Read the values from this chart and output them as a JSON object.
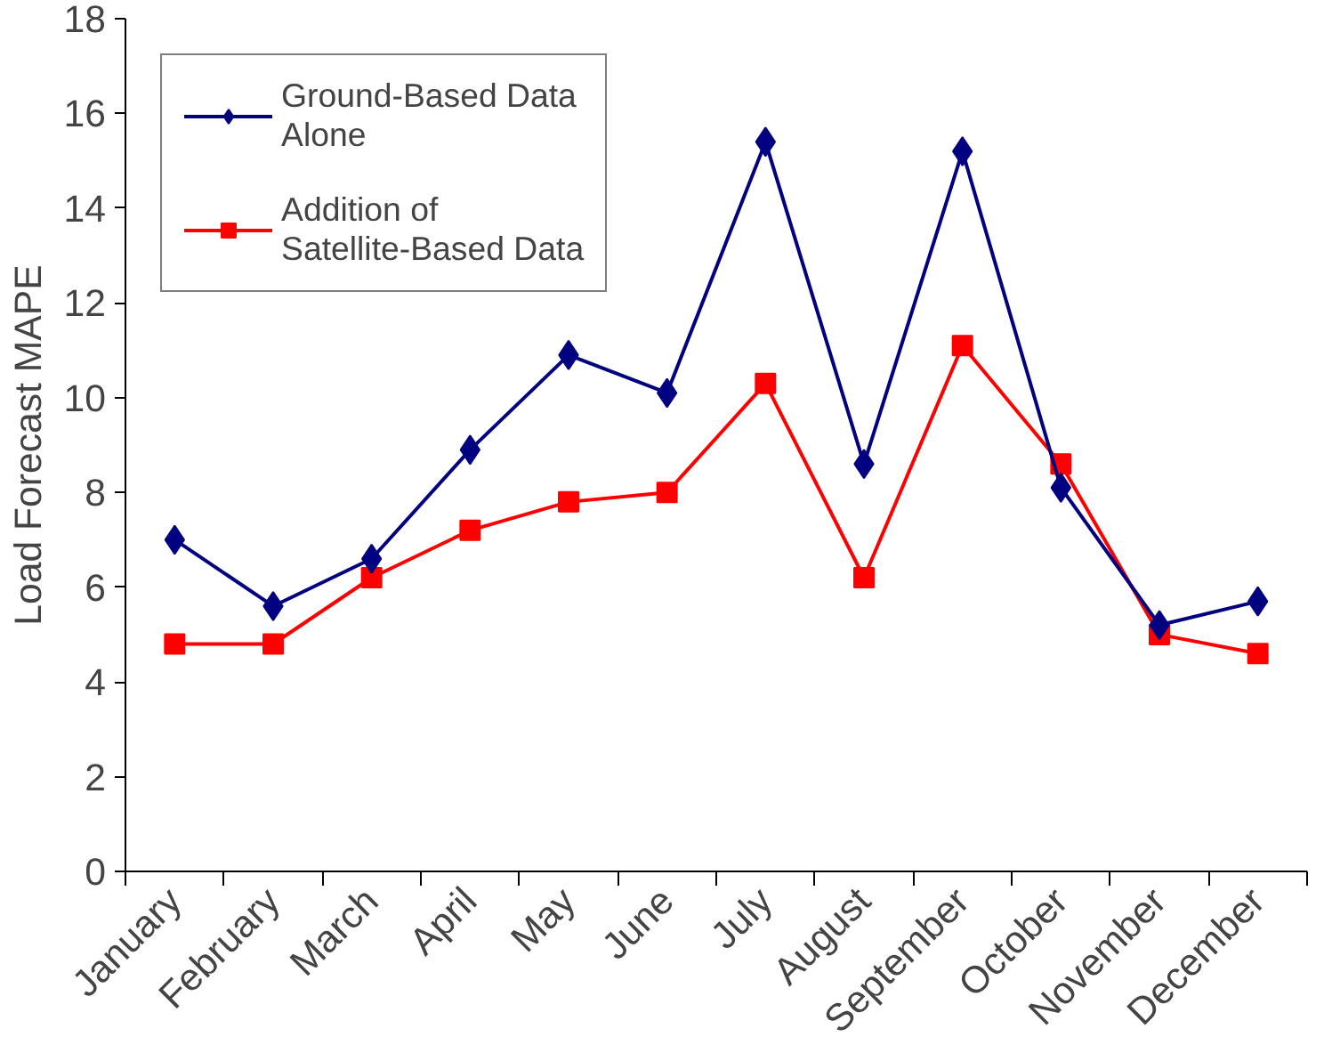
{
  "chart_data": {
    "type": "line",
    "ylabel": "Load Forecast MAPE",
    "categories": [
      "January",
      "February",
      "March",
      "April",
      "May",
      "June",
      "July",
      "August",
      "September",
      "October",
      "November",
      "December"
    ],
    "series": [
      {
        "name": "Ground-Based Data Alone",
        "color": "#000080",
        "marker": "diamond",
        "values": [
          7.0,
          5.6,
          6.6,
          8.9,
          10.9,
          10.1,
          15.4,
          8.6,
          15.2,
          8.1,
          5.2,
          5.7
        ]
      },
      {
        "name": "Addition of Satellite-Based Data",
        "color": "#ff0000",
        "marker": "square",
        "values": [
          4.8,
          4.8,
          6.2,
          7.2,
          7.8,
          8.0,
          10.3,
          6.2,
          11.1,
          8.6,
          5.0,
          4.6
        ]
      }
    ],
    "ylim": [
      0,
      18
    ],
    "yticks": [
      0,
      2,
      4,
      6,
      8,
      10,
      12,
      14,
      16,
      18
    ],
    "grid": false,
    "legend": "top left",
    "line_style": "solid"
  }
}
